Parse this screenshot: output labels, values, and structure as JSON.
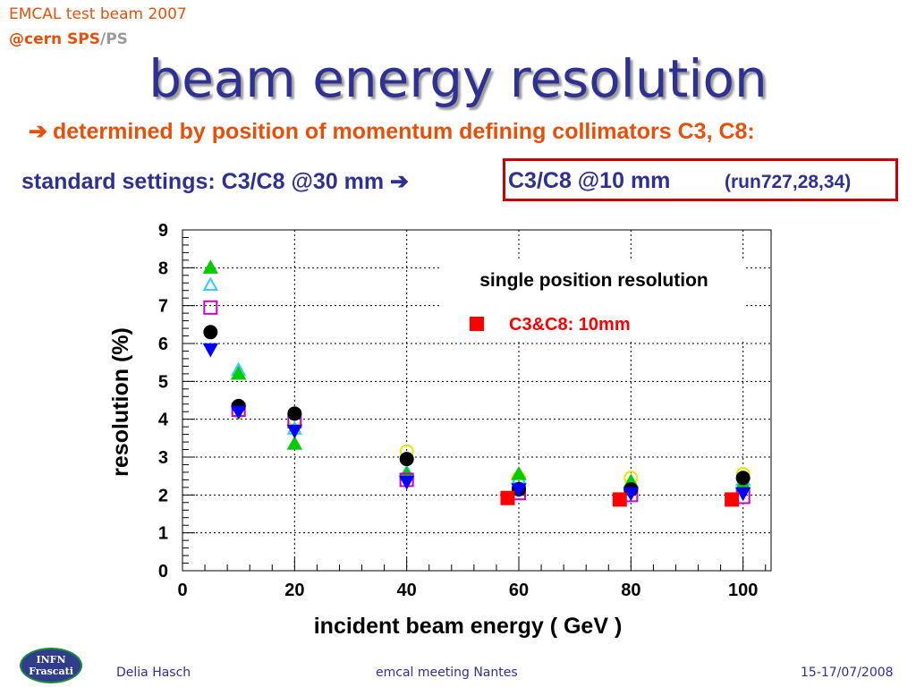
{
  "header": {
    "line1": "EMCAL test beam 2007",
    "line2_part1": "@cern SPS",
    "line2_sep": "/",
    "line2_part2": "PS"
  },
  "title": "beam energy resolution",
  "subtitle": {
    "arrow": "➔",
    "text": "determined by position of momentum defining collimators C3, C8",
    "colon": ":"
  },
  "settings": {
    "standard": "standard settings: C3/C8 @30 mm",
    "arrow": "➔",
    "highlight": "C3/C8 @10 mm",
    "runs": "(run727,28,34)"
  },
  "footer": {
    "logo_line1": "INFN",
    "logo_line2": "Frascati",
    "author": "Delia Hasch",
    "meeting": "emcal meeting Nantes",
    "date": "15-17/07/2008"
  },
  "colors": {
    "title": "#2e3192",
    "accent": "#e8500a",
    "highlight_border": "#cc0000"
  },
  "chart_data": {
    "type": "scatter",
    "xlabel": "incident beam energy ( GeV )",
    "ylabel": "resolution (%)",
    "xlim": [
      0,
      105
    ],
    "ylim": [
      0,
      9
    ],
    "xticks": [
      0,
      20,
      40,
      60,
      80,
      100
    ],
    "yticks": [
      0,
      1,
      2,
      3,
      4,
      5,
      6,
      7,
      8,
      9
    ],
    "grid": true,
    "legend_title": "single position resolution",
    "legend_position": "top-right",
    "series": [
      {
        "marker": "triangle-up-filled",
        "color": "#00cc00",
        "points": [
          [
            5,
            8.0
          ],
          [
            10,
            5.2
          ],
          [
            20,
            3.35
          ],
          [
            40,
            2.55
          ],
          [
            60,
            2.55
          ],
          [
            80,
            2.35
          ],
          [
            100,
            2.3
          ]
        ]
      },
      {
        "marker": "triangle-up-open",
        "color": "#33ccff",
        "points": [
          [
            5,
            7.55
          ],
          [
            10,
            5.3
          ],
          [
            20,
            3.75
          ],
          [
            40,
            2.6
          ],
          [
            60,
            2.45
          ],
          [
            80,
            2.3
          ],
          [
            100,
            2.4
          ]
        ]
      },
      {
        "marker": "square-open",
        "color": "#cc00cc",
        "points": [
          [
            5,
            6.95
          ],
          [
            10,
            4.25
          ],
          [
            20,
            3.95
          ],
          [
            40,
            2.4
          ],
          [
            60,
            2.05
          ],
          [
            80,
            2.0
          ],
          [
            100,
            1.95
          ]
        ]
      },
      {
        "marker": "circle-open",
        "color": "#e6e600",
        "points": [
          [
            10,
            4.2
          ],
          [
            20,
            4.0
          ],
          [
            40,
            3.15
          ],
          [
            60,
            2.45
          ],
          [
            80,
            2.45
          ],
          [
            100,
            2.55
          ]
        ]
      },
      {
        "marker": "circle-filled",
        "color": "#000000",
        "points": [
          [
            5,
            6.3
          ],
          [
            10,
            4.35
          ],
          [
            20,
            4.15
          ],
          [
            40,
            2.95
          ],
          [
            60,
            2.15
          ],
          [
            80,
            2.15
          ],
          [
            100,
            2.45
          ]
        ]
      },
      {
        "marker": "triangle-down-filled",
        "color": "#0000ff",
        "points": [
          [
            5,
            5.85
          ],
          [
            10,
            4.2
          ],
          [
            20,
            3.7
          ],
          [
            40,
            2.35
          ],
          [
            60,
            2.15
          ],
          [
            80,
            2.05
          ],
          [
            100,
            2.05
          ]
        ]
      },
      {
        "name": "C3&C8: 10mm",
        "marker": "square-filled",
        "color": "#ff0000",
        "points": [
          [
            58,
            1.92
          ],
          [
            78,
            1.88
          ],
          [
            98,
            1.88
          ]
        ]
      }
    ]
  }
}
